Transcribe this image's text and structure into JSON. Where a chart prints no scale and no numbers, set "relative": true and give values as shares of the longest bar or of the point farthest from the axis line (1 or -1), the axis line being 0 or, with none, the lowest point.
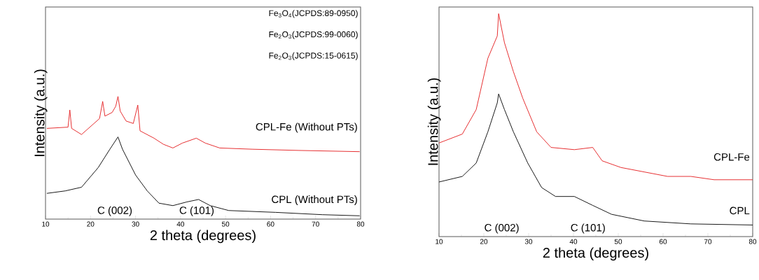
{
  "chart_data": [
    {
      "type": "line",
      "relative": true,
      "xlabel": "2 theta (degrees)",
      "ylabel": "Intensity (a.u.)",
      "xlim": [
        10,
        80
      ],
      "xticks": [
        10,
        20,
        30,
        40,
        50,
        60,
        70,
        80
      ],
      "marker": "none",
      "annotations": [
        "Fe$_{3}$O$_{4}$(JCPDS:89-0950)",
        "Fe$_{2}$O$_{3}$(JCPDS:99-0060)",
        "Fe$_{2}$O$_{3}$(JCPDS:15-0615)",
        "C (002)",
        "C (101)"
      ],
      "series": [
        {
          "name": "CPL-Fe (Without PTs)",
          "color": "#e31a1c",
          "x": [
            10.3,
            15.0,
            15.4,
            15.8,
            18.0,
            22.0,
            22.7,
            23.2,
            24.8,
            25.6,
            26.1,
            26.6,
            27.9,
            29.5,
            30.5,
            31.0,
            34.1,
            36.2,
            38.3,
            40.4,
            43.5,
            45.5,
            48.7,
            55.9,
            66.3,
            79.8
          ],
          "values": [
            0.74,
            0.75,
            0.89,
            0.74,
            0.69,
            0.82,
            0.96,
            0.84,
            0.87,
            0.92,
            1.0,
            0.88,
            0.8,
            0.78,
            0.93,
            0.72,
            0.66,
            0.61,
            0.58,
            0.62,
            0.66,
            0.62,
            0.58,
            0.57,
            0.56,
            0.55
          ]
        },
        {
          "name": "CPL (Without PTs)",
          "color": "#000000",
          "x": [
            10.3,
            14.4,
            18.0,
            21.7,
            24.3,
            26.1,
            27.1,
            30.0,
            32.6,
            35.2,
            38.3,
            41.4,
            44.0,
            46.6,
            50.7,
            61.1,
            71.5,
            79.8
          ],
          "values": [
            0.21,
            0.23,
            0.26,
            0.42,
            0.57,
            0.67,
            0.57,
            0.36,
            0.23,
            0.13,
            0.11,
            0.14,
            0.16,
            0.11,
            0.07,
            0.055,
            0.036,
            0.027
          ]
        }
      ]
    },
    {
      "type": "line",
      "relative": true,
      "xlabel": "2 theta (degrees)",
      "ylabel": "Intensity (a.u.)",
      "xlim": [
        10,
        80
      ],
      "xticks": [
        10,
        20,
        30,
        40,
        50,
        60,
        70,
        80
      ],
      "marker": "none",
      "annotations": [
        "C (002)",
        "C (101)"
      ],
      "series": [
        {
          "name": "CPL-Fe",
          "color": "#e31a1c",
          "x": [
            10.0,
            15.2,
            18.3,
            20.9,
            23.0,
            23.3,
            24.6,
            26.6,
            28.7,
            31.8,
            35.0,
            40.2,
            44.3,
            46.4,
            50.6,
            55.8,
            61.0,
            66.2,
            71.4,
            80.0
          ],
          "values": [
            0.42,
            0.46,
            0.57,
            0.8,
            0.9,
            1.0,
            0.87,
            0.74,
            0.62,
            0.47,
            0.4,
            0.39,
            0.4,
            0.34,
            0.31,
            0.29,
            0.27,
            0.27,
            0.255,
            0.255
          ]
        },
        {
          "name": "CPL",
          "color": "#000000",
          "x": [
            10.0,
            15.2,
            18.3,
            20.9,
            23.0,
            23.3,
            24.6,
            26.6,
            29.8,
            32.9,
            36.0,
            40.2,
            44.3,
            48.5,
            55.8,
            66.2,
            80.0
          ],
          "values": [
            0.245,
            0.27,
            0.33,
            0.47,
            0.6,
            0.64,
            0.57,
            0.47,
            0.33,
            0.22,
            0.18,
            0.18,
            0.14,
            0.1,
            0.07,
            0.057,
            0.052
          ]
        }
      ]
    }
  ]
}
